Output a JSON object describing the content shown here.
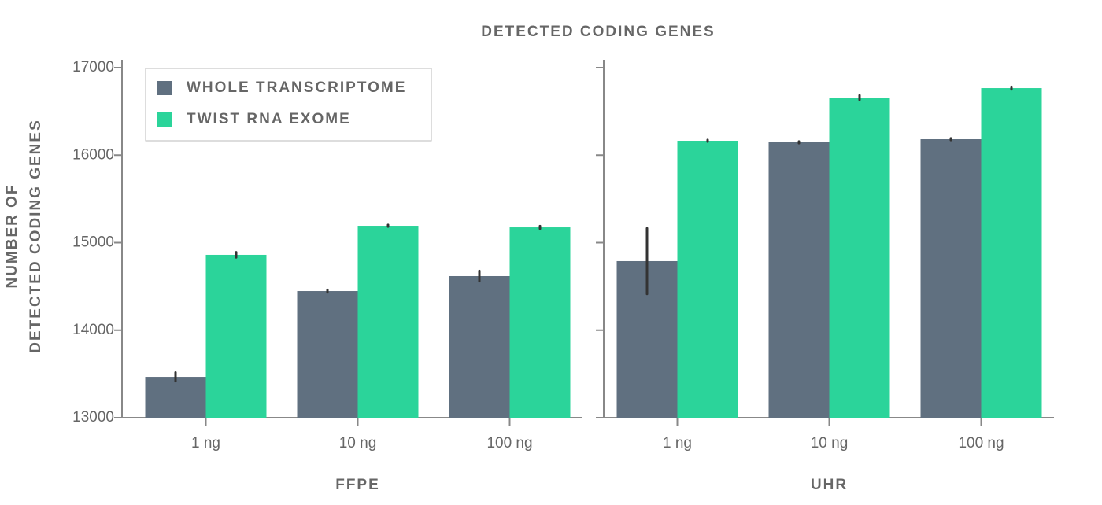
{
  "title": "DETECTED CODING GENES",
  "y_label": [
    "NUMBER OF",
    "DETECTED CODING GENES"
  ],
  "chart_data": [
    {
      "type": "bar",
      "x_label": "FFPE",
      "categories": [
        "1 ng",
        "10 ng",
        "100 ng"
      ],
      "series": [
        {
          "name": "WHOLE TRANSCRIPTOME",
          "color": "#607080",
          "values": [
            13467,
            14447,
            14618
          ],
          "errors": [
            50,
            15,
            60
          ]
        },
        {
          "name": "TWIST RNA EXOME",
          "color": "#2bd49a",
          "values": [
            14861,
            15193,
            15175
          ],
          "errors": [
            30,
            10,
            15
          ]
        }
      ],
      "ylim": [
        13000,
        17000
      ],
      "yticks": [
        13000,
        14000,
        15000,
        16000,
        17000
      ],
      "show_ytick_labels": true,
      "legend": "upper left"
    },
    {
      "type": "bar",
      "x_label": "UHR",
      "categories": [
        "1 ng",
        "10 ng",
        "100 ng"
      ],
      "series": [
        {
          "color": "#607080",
          "values": [
            14789,
            16146,
            16182
          ],
          "errors": [
            375,
            10,
            10
          ]
        },
        {
          "color": "#2bd49a",
          "values": [
            16164,
            16658,
            16766
          ],
          "errors": [
            10,
            25,
            15
          ]
        }
      ],
      "ylim": [
        13000,
        17000
      ],
      "yticks": [
        13000,
        14000,
        15000,
        16000,
        17000
      ],
      "show_ytick_labels": false
    }
  ]
}
